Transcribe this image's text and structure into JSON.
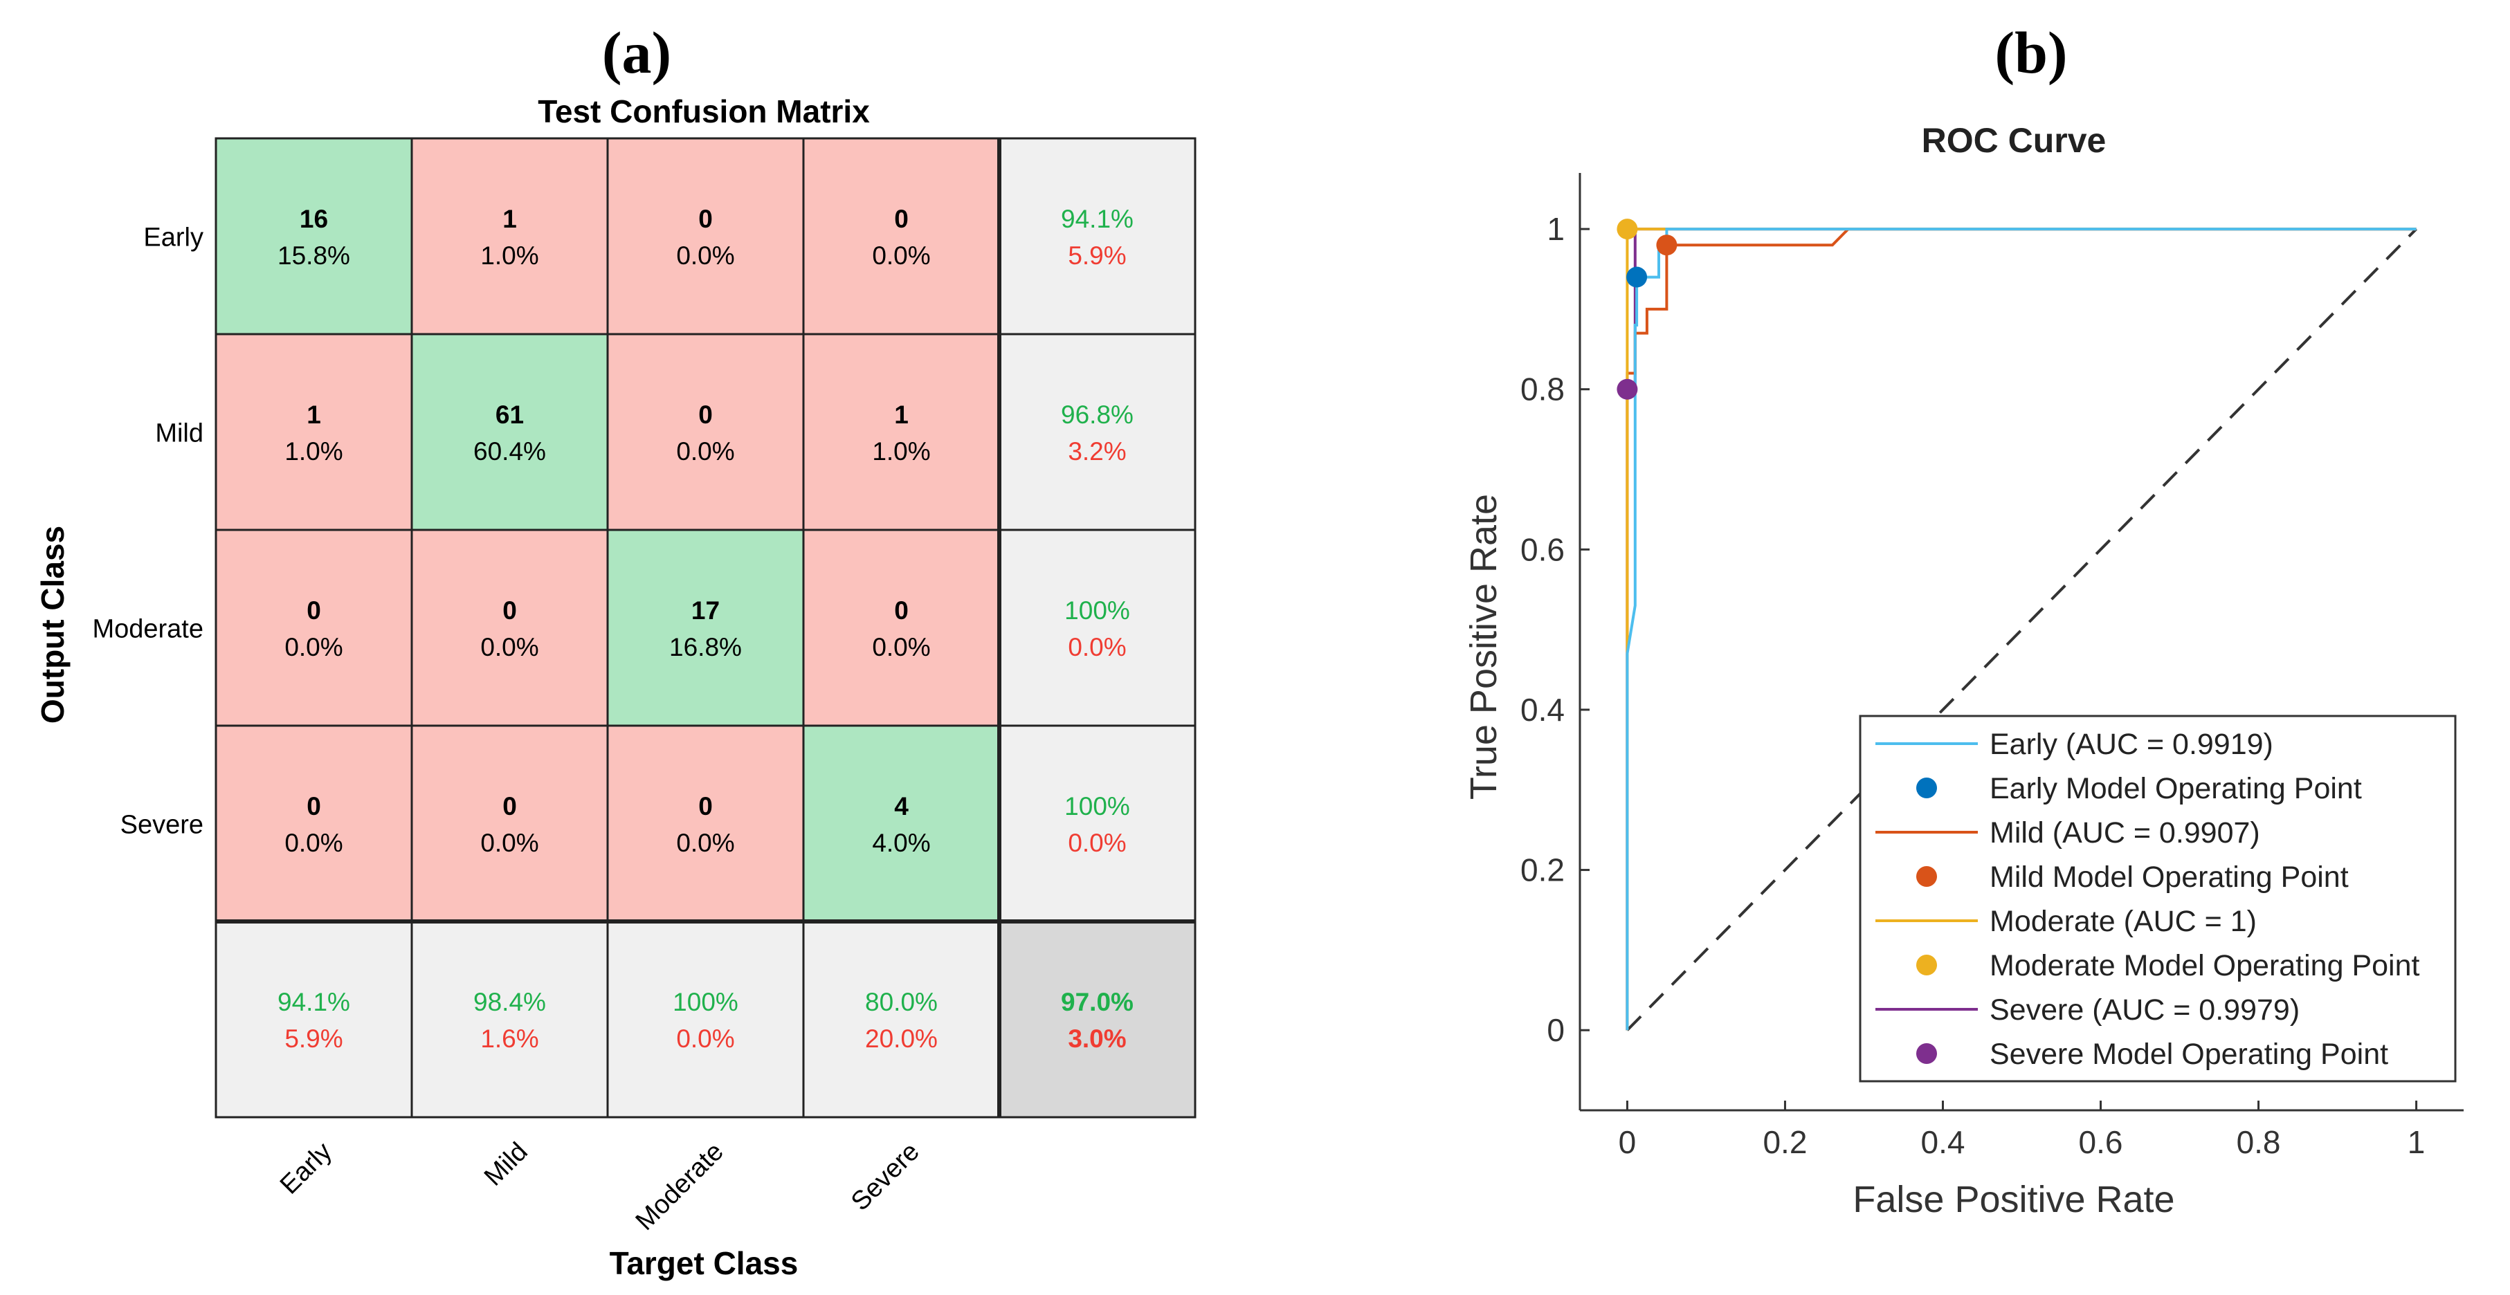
{
  "panels": {
    "a_label": "(a)",
    "b_label": "(b)"
  },
  "chart_data": [
    {
      "type": "heatmap",
      "subtype": "confusion_matrix",
      "title": "Test Confusion Matrix",
      "xlabel": "Target Class",
      "ylabel": "Output Class",
      "classes": [
        "Early",
        "Mild",
        "Moderate",
        "Severe"
      ],
      "counts": [
        [
          16,
          1,
          0,
          0
        ],
        [
          1,
          61,
          0,
          1
        ],
        [
          0,
          0,
          17,
          0
        ],
        [
          0,
          0,
          0,
          4
        ]
      ],
      "percents": [
        [
          "15.8%",
          "1.0%",
          "0.0%",
          "0.0%"
        ],
        [
          "1.0%",
          "60.4%",
          "0.0%",
          "1.0%"
        ],
        [
          "0.0%",
          "0.0%",
          "16.8%",
          "0.0%"
        ],
        [
          "0.0%",
          "0.0%",
          "0.0%",
          "4.0%"
        ]
      ],
      "row_summary": [
        [
          "94.1%",
          "5.9%"
        ],
        [
          "96.8%",
          "3.2%"
        ],
        [
          "100%",
          "0.0%"
        ],
        [
          "100%",
          "0.0%"
        ]
      ],
      "col_summary": [
        [
          "94.1%",
          "5.9%"
        ],
        [
          "98.4%",
          "1.6%"
        ],
        [
          "100%",
          "0.0%"
        ],
        [
          "80.0%",
          "20.0%"
        ]
      ],
      "overall": [
        "97.0%",
        "3.0%"
      ],
      "colors": {
        "correct": "#ade6c1",
        "incorrect": "#fbc2bd",
        "summary": "#f0f0f0",
        "overall": "#d8d8d8",
        "good_text": "#1fb14c",
        "bad_text": "#f03c32"
      }
    },
    {
      "type": "line",
      "title": "ROC Curve",
      "xlabel": "False Positive Rate",
      "ylabel": "True Positive Rate",
      "xlim": [
        -0.06,
        1.06
      ],
      "ylim": [
        -0.1,
        1.07
      ],
      "xticks": [
        0,
        0.2,
        0.4,
        0.6,
        0.8,
        1
      ],
      "xtick_labels": [
        "0",
        "0.2",
        "0.4",
        "0.6",
        "0.8",
        "1"
      ],
      "yticks": [
        0,
        0.2,
        0.4,
        0.6,
        0.8,
        1
      ],
      "ytick_labels": [
        "0",
        "0.2",
        "0.4",
        "0.6",
        "0.8",
        "1"
      ],
      "legend_position": "bottom-right",
      "series": [
        {
          "name": "Early (AUC = 0.9919)",
          "color": "#0072bd",
          "line_color": "#4dbeee",
          "x": [
            0,
            0,
            0.01,
            0.01,
            0.012,
            0.012,
            0.04,
            0.04,
            0.05,
            0.05,
            1
          ],
          "y": [
            0,
            0.47,
            0.53,
            0.88,
            0.88,
            0.94,
            0.94,
            0.98,
            0.98,
            1,
            1
          ],
          "operating_point": {
            "label": "Early Model Operating Point",
            "x": 0.012,
            "y": 0.94
          }
        },
        {
          "name": "Mild (AUC = 0.9907)",
          "color": "#d95319",
          "x": [
            0,
            0,
            0.01,
            0.01,
            0.025,
            0.025,
            0.05,
            0.05,
            0.26,
            0.28,
            1
          ],
          "y": [
            0,
            0.82,
            0.82,
            0.87,
            0.87,
            0.9,
            0.9,
            0.98,
            0.98,
            1,
            1
          ],
          "operating_point": {
            "label": "Mild Model Operating Point",
            "x": 0.05,
            "y": 0.98
          }
        },
        {
          "name": "Moderate (AUC = 1)",
          "color": "#edb120",
          "x": [
            0,
            0,
            0,
            1
          ],
          "y": [
            0,
            0.8,
            1,
            1
          ],
          "operating_point": {
            "label": "Moderate Model Operating Point",
            "x": 0,
            "y": 1
          }
        },
        {
          "name": "Severe (AUC = 0.9979)",
          "color": "#7e2f8e",
          "x": [
            0,
            0,
            0,
            0.01,
            0.01,
            1
          ],
          "y": [
            0,
            0.48,
            0.8,
            0.8,
            1,
            1
          ],
          "operating_point": {
            "label": "Severe Model Operating Point",
            "x": 0,
            "y": 0.8
          }
        }
      ],
      "reference_line": {
        "x": [
          0,
          1
        ],
        "y": [
          0,
          1
        ],
        "style": "dashed",
        "color": "#333333"
      }
    }
  ]
}
